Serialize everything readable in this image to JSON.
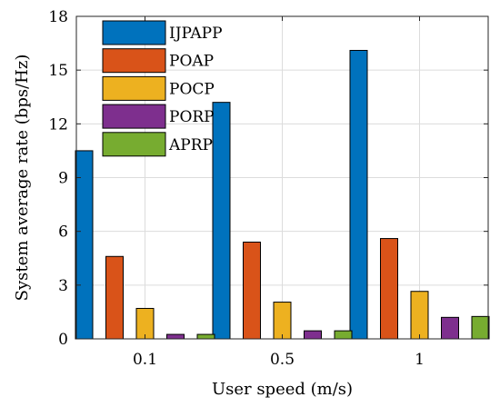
{
  "chart_data": {
    "type": "bar",
    "categories": [
      "0.1",
      "0.5",
      "1"
    ],
    "series": [
      {
        "name": "IJPAPP",
        "color": "#0072BD",
        "values": [
          10.5,
          13.2,
          16.1
        ]
      },
      {
        "name": "POAP",
        "color": "#D95319",
        "values": [
          4.6,
          5.4,
          5.6
        ]
      },
      {
        "name": "POCP",
        "color": "#EDB120",
        "values": [
          1.7,
          2.05,
          2.65
        ]
      },
      {
        "name": "PORP",
        "color": "#7E2F8E",
        "values": [
          0.25,
          0.45,
          1.2
        ]
      },
      {
        "name": "APRP",
        "color": "#77AC30",
        "values": [
          0.25,
          0.45,
          1.25
        ]
      }
    ],
    "xlabel": "User speed (m/s)",
    "ylabel": "System average rate (bps/Hz)",
    "ylim": [
      0,
      18
    ],
    "yticks": [
      0,
      3,
      6,
      9,
      12,
      15,
      18
    ],
    "grid": true,
    "legend_position": "top-left"
  }
}
